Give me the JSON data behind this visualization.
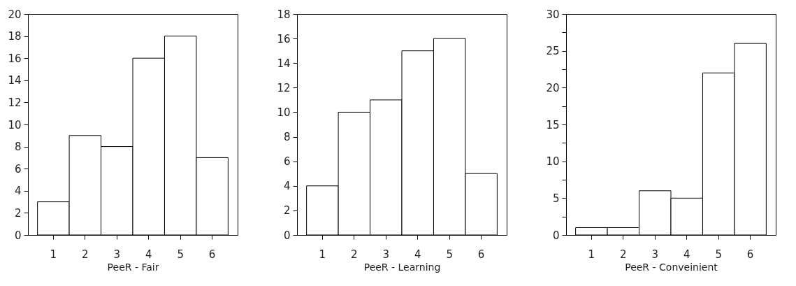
{
  "chart_data": [
    {
      "type": "bar",
      "xlabel": "PeeR - Fair",
      "categories": [
        "1",
        "2",
        "3",
        "4",
        "5",
        "6"
      ],
      "values": [
        3,
        9,
        8,
        16,
        18,
        7
      ],
      "color": "#ffffff",
      "ylim": [
        0,
        20
      ],
      "yticks": [
        0,
        2,
        4,
        6,
        8,
        10,
        12,
        14,
        16,
        18,
        20
      ],
      "grid": false
    },
    {
      "type": "bar",
      "xlabel": "PeeR - Learning",
      "categories": [
        "1",
        "2",
        "3",
        "4",
        "5",
        "6"
      ],
      "values": [
        4,
        10,
        11,
        15,
        16,
        5
      ],
      "color": "#ffffff",
      "ylim": [
        0,
        18
      ],
      "yticks": [
        0,
        2,
        4,
        6,
        8,
        10,
        12,
        14,
        16,
        18
      ],
      "grid": false
    },
    {
      "type": "bar",
      "xlabel": "PeeR - Conveinient",
      "categories": [
        "1",
        "2",
        "3",
        "4",
        "5",
        "6"
      ],
      "values": [
        1,
        1,
        6,
        5,
        22,
        26
      ],
      "color": "#ffffff",
      "ylim": [
        0,
        30
      ],
      "yticks": [
        0,
        {
          "value": 2.5,
          "label": null
        },
        5,
        {
          "value": 7.5,
          "label": null
        },
        10,
        {
          "value": 12.5,
          "label": null
        },
        15,
        {
          "value": 17.5,
          "label": null
        },
        20,
        {
          "value": 22.5,
          "label": null
        },
        25,
        {
          "value": 27.5,
          "label": null
        },
        30
      ],
      "grid": false
    }
  ]
}
